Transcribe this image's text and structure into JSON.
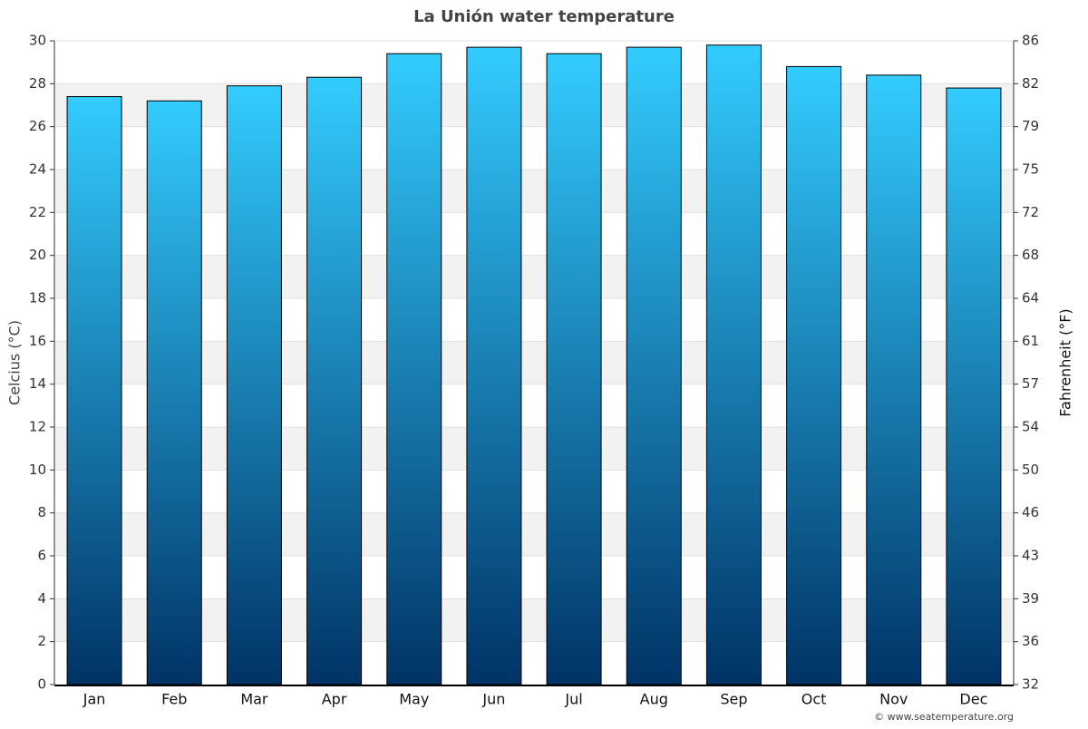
{
  "chart_data": {
    "type": "bar",
    "title": "La Unión water temperature",
    "categories": [
      "Jan",
      "Feb",
      "Mar",
      "Apr",
      "May",
      "Jun",
      "Jul",
      "Aug",
      "Sep",
      "Oct",
      "Nov",
      "Dec"
    ],
    "values": [
      27.4,
      27.2,
      27.9,
      28.3,
      29.4,
      29.7,
      29.4,
      29.7,
      29.8,
      28.8,
      28.4,
      27.8
    ],
    "gradient": [
      "#33ccff",
      "#003366"
    ],
    "ylabel": "Celcius (°C)",
    "y2label": "Fahrenheit (°F)",
    "ylim": [
      0,
      30
    ],
    "yticks": [
      0,
      2,
      4,
      6,
      8,
      10,
      12,
      14,
      16,
      18,
      20,
      22,
      24,
      26,
      28,
      30
    ],
    "y2lim": [
      32,
      86
    ],
    "y2ticks": [
      32,
      {
        "value": 35.6,
        "label": "36"
      },
      {
        "value": 39.2,
        "label": "39"
      },
      {
        "value": 42.8,
        "label": "43"
      },
      {
        "value": 46.4,
        "label": "46"
      },
      50,
      {
        "value": 53.6,
        "label": "54"
      },
      {
        "value": 57.2,
        "label": "57"
      },
      {
        "value": 60.8,
        "label": "61"
      },
      {
        "value": 64.4,
        "label": "64"
      },
      68,
      {
        "value": 71.6,
        "label": "72"
      },
      {
        "value": 75.2,
        "label": "75"
      },
      {
        "value": 78.8,
        "label": "79"
      },
      {
        "value": 82.4,
        "label": "82"
      },
      86
    ],
    "grid": true,
    "credit": "© www.seatemperature.org"
  }
}
